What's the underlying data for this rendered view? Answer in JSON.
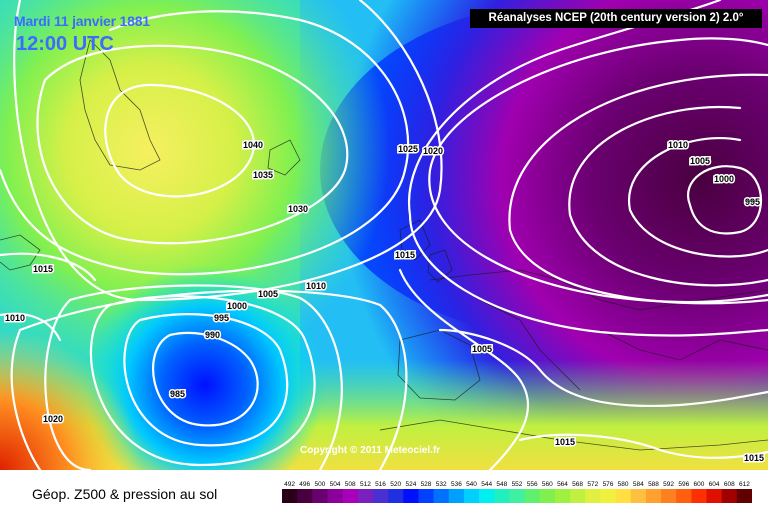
{
  "header": {
    "date": "Mardi 11 janvier 1881",
    "time": "12:00 UTC",
    "source": "Réanalyses NCEP (20th century version 2) 2.0°"
  },
  "copyright": "Copyright © 2011 Meteociel.fr",
  "legend": {
    "title": "Géop. Z500 & pression au sol",
    "ticks": [
      "492",
      "496",
      "500",
      "504",
      "508",
      "512",
      "516",
      "520",
      "524",
      "528",
      "532",
      "536",
      "540",
      "544",
      "548",
      "552",
      "556",
      "560",
      "564",
      "568",
      "572",
      "576",
      "580",
      "584",
      "588",
      "592",
      "596",
      "600",
      "604",
      "608",
      "612"
    ],
    "colors": [
      "#2a0018",
      "#4a0040",
      "#6a0070",
      "#8a0098",
      "#a800b8",
      "#7a20c0",
      "#4a30d0",
      "#2030e0",
      "#0010ff",
      "#0040ff",
      "#0070ff",
      "#00a0ff",
      "#00d0ff",
      "#00f0f0",
      "#20f0c0",
      "#40f0a0",
      "#60f070",
      "#80f050",
      "#a0f040",
      "#c0f040",
      "#e0f040",
      "#f0f040",
      "#ffe040",
      "#ffc040",
      "#ffa030",
      "#ff8020",
      "#ff6010",
      "#ff3000",
      "#e01000",
      "#a00000",
      "#600000"
    ]
  },
  "isobar_labels": [
    "1040",
    "1035",
    "1030",
    "1025",
    "1020",
    "1015",
    "1010",
    "1005",
    "1000",
    "995",
    "990",
    "985",
    "1020",
    "1015",
    "1010",
    "1010",
    "1005",
    "1000",
    "995",
    "1015",
    "1015",
    "1005",
    "1010"
  ]
}
